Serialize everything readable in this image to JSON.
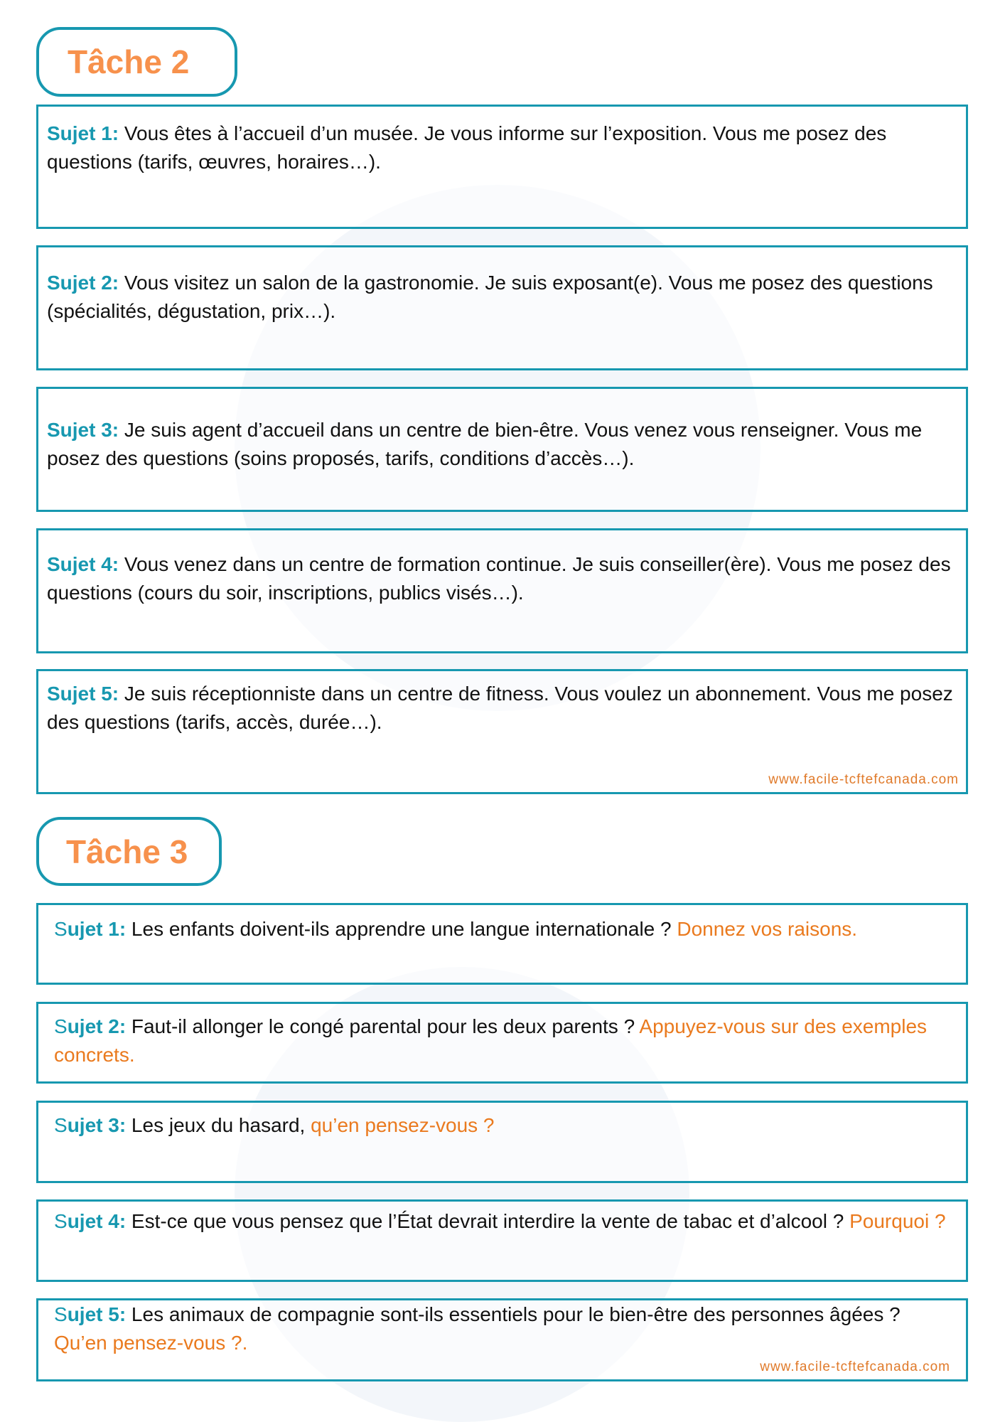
{
  "tache2": {
    "title": "Tâche 2",
    "sujets": [
      {
        "label": "Sujet 1:",
        "text": " Vous êtes à l’accueil d’un musée. Je vous informe sur l’exposition. Vous me posez des questions (tarifs, œuvres, horaires…)."
      },
      {
        "label": "Sujet 2:",
        "text": " Vous visitez un salon de la gastronomie. Je suis exposant(e). Vous me posez des questions (spécialités, dégustation, prix…)."
      },
      {
        "label": "Sujet 3:",
        "text": " Je suis agent d’accueil dans un centre de bien-être. Vous venez vous renseigner. Vous me posez des questions (soins proposés, tarifs, conditions d’accès…)."
      },
      {
        "label": "Sujet 4:",
        "text": " Vous venez dans un centre de formation continue. Je suis conseiller(ère). Vous me posez des questions (cours du soir, inscriptions, publics visés…)."
      },
      {
        "label": "Sujet 5:",
        "text": " Je suis réceptionniste dans un centre de fitness. Vous voulez un abonnement. Vous me posez des questions (tarifs, accès, durée…)."
      }
    ],
    "website": "www.facile-tcftefcanada.com"
  },
  "tache3": {
    "title": "Tâche 3",
    "sujets": [
      {
        "label_s": "S",
        "label_rest": "ujet 1:",
        "text": " Les enfants doivent-ils apprendre une langue internationale ? ",
        "highlight": "Donnez vos raisons."
      },
      {
        "label_s": "S",
        "label_rest": "ujet 2:",
        "text": " Faut-il allonger le congé parental pour les deux parents ? ",
        "highlight": "Appuyez-vous sur des exemples concrets."
      },
      {
        "label_s": "S",
        "label_rest": "ujet 3:",
        "text": " Les jeux du hasard, ",
        "highlight": "qu’en pensez-vous ?"
      },
      {
        "label_s": "S",
        "label_rest": "ujet 4:",
        "text": " Est-ce que vous pensez que l’État devrait interdire la vente de tabac et d’alcool ? ",
        "highlight": "Pourquoi ?"
      },
      {
        "label_s": "S",
        "label_rest": "ujet 5:",
        "text": " Les animaux de compagnie sont-ils essentiels pour le bien-être des personnes âgées ? ",
        "highlight": "Qu’en pensez-vous ?."
      }
    ],
    "website": "www.facile-tcftefcanada.com"
  },
  "colors": {
    "accent": "#1798b0",
    "header_orange": "#f7914c",
    "highlight_orange": "#ea7a1e"
  }
}
